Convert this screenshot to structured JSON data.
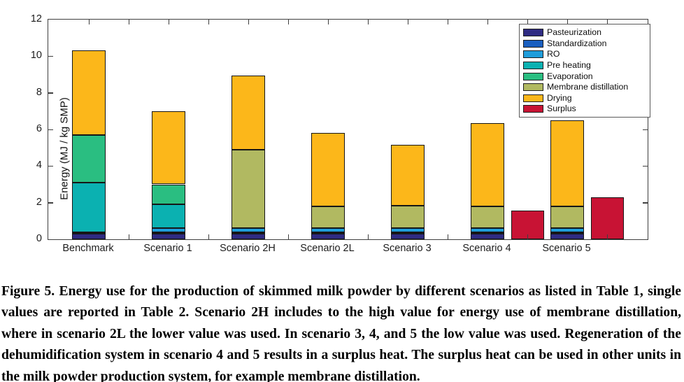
{
  "figure": {
    "caption": "Figure 5. Energy use for the production of skimmed milk powder by different scenarios as listed in Table 1, single values are reported in Table 2. Scenario 2H includes to the high value for energy use of membrane distillation, where in scenario 2L the lower value was used. In scenario 3, 4, and 5 the low value was used. Regeneration of the dehumidification system in scenario 4 and 5 results in a surplus heat. The surplus heat can be used in other units in the milk powder production system, for example membrane distillation."
  },
  "chart_data": {
    "type": "bar",
    "stacked": true,
    "title": "",
    "xlabel": "",
    "ylabel": "Energy (MJ / kg SMP)",
    "ylim": [
      0,
      12
    ],
    "yticks": [
      0,
      2,
      4,
      6,
      8,
      10,
      12
    ],
    "grid": false,
    "legend_position": "upper right",
    "categories": [
      "Benchmark",
      "Scenario 1",
      "Scenario 2H",
      "Scenario 2L",
      "Scenario 3",
      "Scenario 4",
      "Scenario 5"
    ],
    "series": [
      {
        "name": "Pasteurization",
        "color": "#2f2b82",
        "values": [
          0.3,
          0.3,
          0.3,
          0.3,
          0.3,
          0.3,
          0.3
        ]
      },
      {
        "name": "Standardization",
        "color": "#1a5fc0",
        "values": [
          0.1,
          0.1,
          0.1,
          0.1,
          0.1,
          0.1,
          0.1
        ]
      },
      {
        "name": "RO",
        "color": "#1f9dda",
        "values": [
          0,
          0.2,
          0.2,
          0.2,
          0.2,
          0.2,
          0.2
        ]
      },
      {
        "name": "Pre heating",
        "color": "#0bb1b1",
        "values": [
          2.7,
          1.3,
          0,
          0,
          0,
          0,
          0
        ]
      },
      {
        "name": "Evaporation",
        "color": "#2abe81",
        "values": [
          2.6,
          1.1,
          0,
          0,
          0,
          0,
          0
        ]
      },
      {
        "name": "Membrane distillation",
        "color": "#b1b961",
        "values": [
          0,
          0,
          4.3,
          1.2,
          1.25,
          1.2,
          1.2
        ]
      },
      {
        "name": "Drying",
        "color": "#fcb71a",
        "values": [
          4.6,
          4.0,
          4.05,
          4.0,
          3.3,
          4.55,
          4.7
        ]
      },
      {
        "name": "Surplus",
        "color": "#c81334",
        "values": [
          0,
          0,
          0,
          0,
          0,
          1.55,
          2.3
        ],
        "separate_bar": true
      }
    ],
    "stack_totals": [
      10.3,
      7.0,
      8.95,
      5.8,
      5.15,
      6.35,
      6.5
    ],
    "surplus_bar_values": {
      "Scenario 4": 1.55,
      "Scenario 5": 2.3
    }
  }
}
